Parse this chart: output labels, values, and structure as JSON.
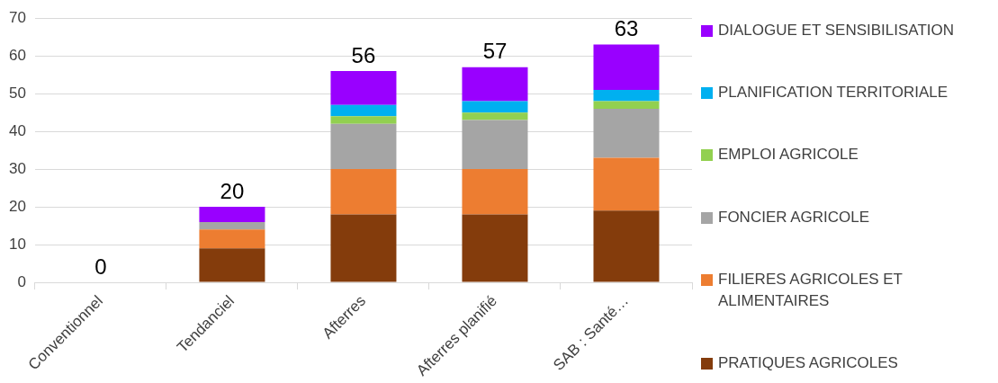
{
  "chart_data": {
    "type": "bar",
    "stacked": true,
    "categories": [
      "Conventionnel",
      "Tendanciel",
      "Afterres",
      "Afterres planifié",
      "SAB : Santé…"
    ],
    "series": [
      {
        "name": "PRATIQUES AGRICOLES",
        "color": "#843c0c",
        "values": [
          0,
          9,
          18,
          18,
          19
        ]
      },
      {
        "name": "FILIERES AGRICOLES ET ALIMENTAIRES",
        "color": "#ed7d31",
        "values": [
          0,
          5,
          12,
          12,
          14
        ]
      },
      {
        "name": "FONCIER AGRICOLE",
        "color": "#a5a5a5",
        "values": [
          0,
          2,
          12,
          13,
          13
        ]
      },
      {
        "name": "EMPLOI AGRICOLE",
        "color": "#92d050",
        "values": [
          0,
          0,
          2,
          2,
          2
        ]
      },
      {
        "name": "PLANIFICATION TERRITORIALE",
        "color": "#00b0f0",
        "values": [
          0,
          0,
          3,
          3,
          3
        ]
      },
      {
        "name": "DIALOGUE ET SENSIBILISATION",
        "color": "#9900ff",
        "values": [
          0,
          4,
          9,
          9,
          12
        ]
      }
    ],
    "totals": [
      "0",
      "20",
      "56",
      "57",
      "63"
    ],
    "ylim": [
      0,
      70
    ],
    "yticks": [
      0,
      10,
      20,
      30,
      40,
      50,
      60,
      70
    ],
    "grid": "y",
    "legend": "right"
  }
}
